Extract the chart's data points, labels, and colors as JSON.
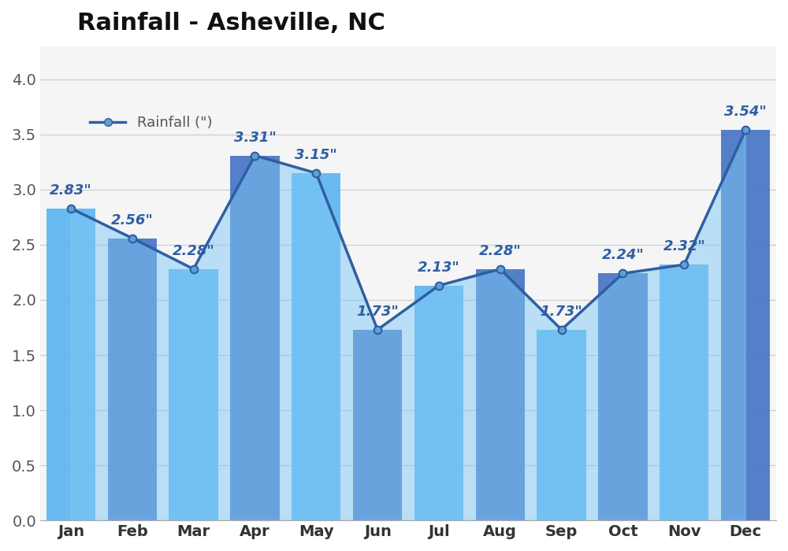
{
  "title": "Rainfall - Asheville, NC",
  "months": [
    "Jan",
    "Feb",
    "Mar",
    "Apr",
    "May",
    "Jun",
    "Jul",
    "Aug",
    "Sep",
    "Oct",
    "Nov",
    "Dec"
  ],
  "values": [
    2.83,
    2.56,
    2.28,
    3.31,
    3.15,
    1.73,
    2.13,
    2.28,
    1.73,
    2.24,
    2.32,
    3.54
  ],
  "labels": [
    "2.83\"",
    "2.56\"",
    "2.28\"",
    "3.31\"",
    "3.15\"",
    "1.73\"",
    "2.13\"",
    "2.28\"",
    "1.73\"",
    "2.24\"",
    "2.32\"",
    "3.54\""
  ],
  "bar_color_light": "#5ab4f0",
  "bar_color_dark": "#4472c4",
  "line_color": "#2e5fa3",
  "marker_color": "#5f9fd4",
  "fill_color": "#7ec8f5",
  "fill_alpha": 0.85,
  "background_color": "#f5f5f5",
  "ylim": [
    0.0,
    4.3
  ],
  "yticks": [
    0.0,
    0.5,
    1.0,
    1.5,
    2.0,
    2.5,
    3.0,
    3.5,
    4.0
  ],
  "legend_label": "Rainfall (\")",
  "title_fontsize": 22,
  "label_fontsize": 13,
  "tick_fontsize": 14,
  "legend_fontsize": 13
}
